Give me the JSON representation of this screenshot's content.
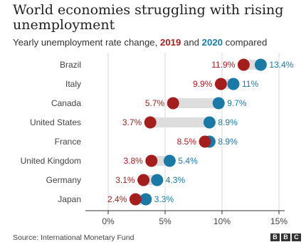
{
  "title": "World economies struggling with rising unemployment",
  "subtitle": {
    "prefix": "Yearly unemployment rate change, ",
    "year1": "2019",
    "middle": " and ",
    "year2": "2020",
    "suffix": " compared"
  },
  "source": "Source: International Monetary Fund",
  "logo": [
    "B",
    "B",
    "C"
  ],
  "colors": {
    "year_2019": "#a41e1e",
    "year_2020": "#1a7aa5",
    "connector": "#dddddd",
    "grid": "#d9d9d9",
    "axis": "#333333"
  },
  "chart_data": {
    "type": "dumbbell",
    "categories": [
      "Brazil",
      "Italy",
      "Canada",
      "United States",
      "France",
      "United Kingdom",
      "Germany",
      "Japan"
    ],
    "series": [
      {
        "name": "2019",
        "values": [
          11.9,
          9.9,
          5.7,
          3.7,
          8.5,
          3.8,
          3.1,
          2.4
        ],
        "labels": [
          "11.9%",
          "9.9%",
          "5.7%",
          "3.7%",
          "8.5%",
          "3.8%",
          "3.1%",
          "2.4%"
        ]
      },
      {
        "name": "2020",
        "values": [
          13.4,
          11.0,
          9.7,
          8.9,
          8.9,
          5.4,
          4.3,
          3.3
        ],
        "labels": [
          "13.4%",
          "11%",
          "9.7%",
          "8.9%",
          "8.9%",
          "5.4%",
          "4.3%",
          "3.3%"
        ]
      }
    ],
    "xlim": [
      -2,
      15.5
    ],
    "xticks": [
      0,
      5,
      10,
      15
    ],
    "xtick_labels": [
      "0%",
      "5%",
      "10%",
      "15%"
    ],
    "grid": true,
    "legend": "subtitle"
  }
}
